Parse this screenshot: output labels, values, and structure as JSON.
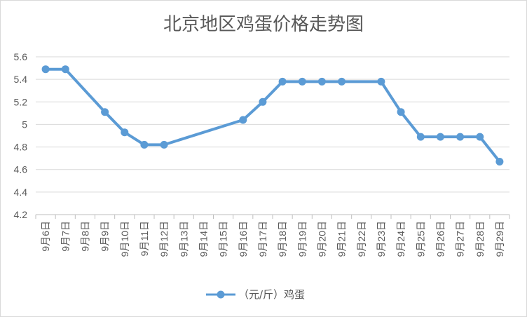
{
  "chart_data": {
    "type": "line",
    "title": "北京地区鸡蛋价格走势图",
    "xlabel": "",
    "ylabel": "",
    "ylim": [
      4.2,
      5.6
    ],
    "yticks": [
      "5.6",
      "5.4",
      "5.2",
      "5",
      "4.8",
      "4.6",
      "4.4",
      "4.2"
    ],
    "grid": true,
    "legend": "bottom",
    "line_color": "#5b9bd5",
    "categories": [
      "9月6日",
      "9月7日",
      "9月8日",
      "9月9日",
      "9月10日",
      "9月11日",
      "9月12日",
      "9月13日",
      "9月14日",
      "9月15日",
      "9月16日",
      "9月17日",
      "9月18日",
      "9月19日",
      "9月20日",
      "9月21日",
      "9月22日",
      "9月23日",
      "9月24日",
      "9月25日",
      "9月26日",
      "9月27日",
      "9月28日",
      "9月29日"
    ],
    "series": [
      {
        "name": "（元/斤）鸡蛋",
        "x": [
          "9月6日",
          "9月7日",
          "9月9日",
          "9月10日",
          "9月11日",
          "9月12日",
          "9月16日",
          "9月17日",
          "9月18日",
          "9月19日",
          "9月20日",
          "9月21日",
          "9月23日",
          "9月24日",
          "9月25日",
          "9月26日",
          "9月27日",
          "9月28日",
          "9月29日"
        ],
        "values": [
          5.49,
          5.49,
          5.11,
          4.93,
          4.82,
          4.82,
          5.04,
          5.2,
          5.38,
          5.38,
          5.38,
          5.38,
          5.38,
          5.11,
          4.89,
          4.89,
          4.89,
          4.89,
          4.67
        ]
      }
    ]
  }
}
